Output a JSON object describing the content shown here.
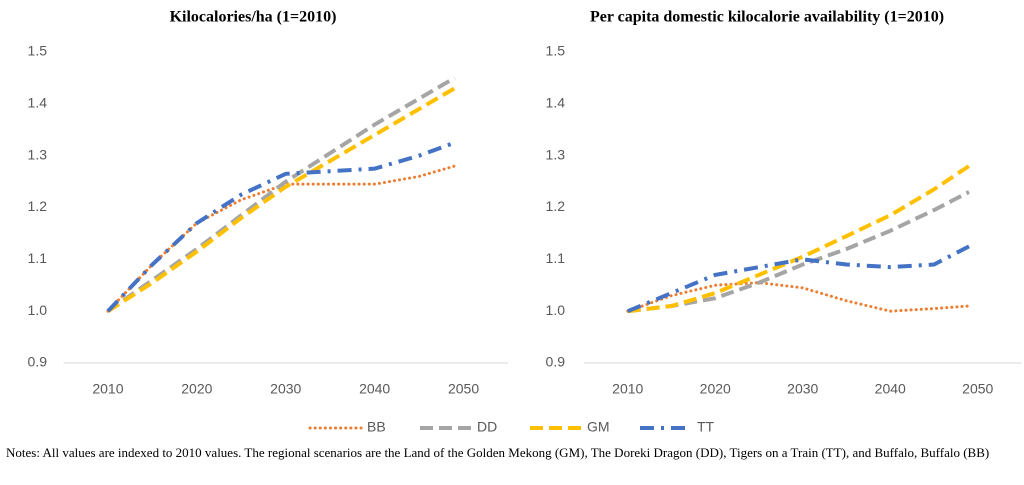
{
  "chart_data": [
    {
      "type": "line",
      "title": "Kilocalories/ha (1=2010)",
      "x": [
        2010,
        2015,
        2020,
        2025,
        2030,
        2035,
        2040,
        2045,
        2049
      ],
      "xlim": [
        2005,
        2055
      ],
      "xticks": [
        2010,
        2020,
        2030,
        2040,
        2050
      ],
      "ylim": [
        0.9,
        1.5
      ],
      "yticks": [
        {
          "value": 0.9,
          "label": "0.9"
        },
        {
          "value": 1.0,
          "label": "1.0"
        },
        1.1,
        1.2,
        1.3,
        1.4,
        1.5
      ],
      "grid": false,
      "series": [
        {
          "name": "BB",
          "color": "#ED7D31",
          "dash": "dot",
          "values": [
            1.0,
            1.09,
            1.17,
            1.215,
            1.245,
            1.245,
            1.245,
            1.26,
            1.28
          ]
        },
        {
          "name": "DD",
          "color": "#A5A5A5",
          "dash": "dash",
          "values": [
            1.0,
            1.06,
            1.12,
            1.185,
            1.25,
            1.305,
            1.36,
            1.41,
            1.45
          ]
        },
        {
          "name": "GM",
          "color": "#FFC000",
          "dash": "dash",
          "values": [
            1.0,
            1.055,
            1.115,
            1.18,
            1.24,
            1.29,
            1.34,
            1.39,
            1.43
          ]
        },
        {
          "name": "TT",
          "color": "#4472C4",
          "dash": "dashdot",
          "values": [
            1.0,
            1.09,
            1.17,
            1.225,
            1.265,
            1.27,
            1.275,
            1.3,
            1.325
          ]
        }
      ]
    },
    {
      "type": "line",
      "title": "Per capita domestic kilocalorie availability (1=2010)",
      "x": [
        2010,
        2015,
        2020,
        2025,
        2030,
        2035,
        2040,
        2045,
        2049
      ],
      "xlim": [
        2005,
        2055
      ],
      "xticks": [
        2010,
        2020,
        2030,
        2040,
        2050
      ],
      "ylim": [
        0.9,
        1.5
      ],
      "yticks": [
        {
          "value": 0.9,
          "label": "0.9"
        },
        {
          "value": 1.0,
          "label": "1.0"
        },
        1.1,
        1.2,
        1.3,
        1.4,
        1.5
      ],
      "grid": false,
      "series": [
        {
          "name": "BB",
          "color": "#ED7D31",
          "dash": "dot",
          "values": [
            1.0,
            1.03,
            1.05,
            1.055,
            1.045,
            1.02,
            1.0,
            1.005,
            1.01
          ]
        },
        {
          "name": "DD",
          "color": "#A5A5A5",
          "dash": "dash",
          "values": [
            1.0,
            1.01,
            1.025,
            1.055,
            1.09,
            1.12,
            1.155,
            1.195,
            1.23
          ]
        },
        {
          "name": "GM",
          "color": "#FFC000",
          "dash": "dash",
          "values": [
            1.0,
            1.01,
            1.035,
            1.07,
            1.105,
            1.145,
            1.185,
            1.235,
            1.28
          ]
        },
        {
          "name": "TT",
          "color": "#4472C4",
          "dash": "dashdot",
          "values": [
            1.0,
            1.035,
            1.07,
            1.085,
            1.1,
            1.09,
            1.085,
            1.09,
            1.125
          ]
        }
      ]
    }
  ],
  "notes": "Notes: All values are indexed to 2010 values. The regional scenarios are the Land of the Golden Mekong (GM), The Doreki Dragon (DD), Tigers on a Train (TT), and Buffalo, Buffalo (BB)"
}
